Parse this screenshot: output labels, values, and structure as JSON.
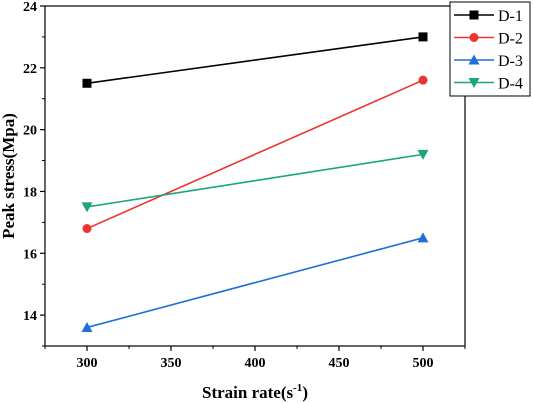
{
  "chart_data": {
    "type": "line",
    "xlabel": "Strain rate(s",
    "xlabel_sup": "-1",
    "xlabel_end": ")",
    "ylabel": "Peak stress(Mpa)",
    "x": [
      300,
      500
    ],
    "xticks": [
      300,
      350,
      400,
      450,
      500
    ],
    "yticks": [
      14,
      16,
      18,
      20,
      22,
      24
    ],
    "xlim": [
      275,
      525
    ],
    "ylim": [
      13,
      24
    ],
    "grid": false,
    "legend_position": "top-right",
    "series": [
      {
        "name": "D-1",
        "values": [
          21.5,
          23.0
        ],
        "color": "#000000",
        "marker": "square"
      },
      {
        "name": "D-2",
        "values": [
          16.8,
          21.6
        ],
        "color": "#ee3333",
        "marker": "circle"
      },
      {
        "name": "D-3",
        "values": [
          13.6,
          16.5
        ],
        "color": "#1f6fd6",
        "marker": "triangle-up"
      },
      {
        "name": "D-4",
        "values": [
          17.5,
          19.2
        ],
        "color": "#1aa67a",
        "marker": "triangle-down"
      }
    ]
  }
}
